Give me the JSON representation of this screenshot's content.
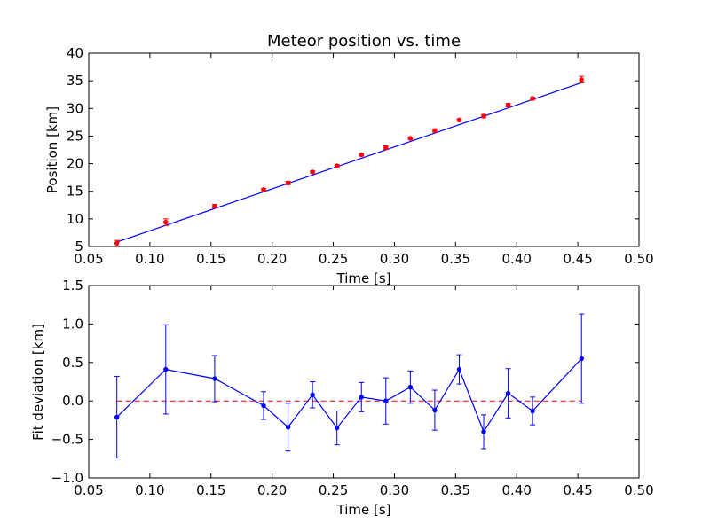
{
  "chart_data": [
    {
      "type": "scatter",
      "title": "Meteor position vs. time",
      "xlabel": "Time [s]",
      "ylabel": "Position [km]",
      "xlim": [
        0.05,
        0.5
      ],
      "ylim": [
        5,
        40
      ],
      "xticks": [
        "0.05",
        "0.10",
        "0.15",
        "0.20",
        "0.25",
        "0.30",
        "0.35",
        "0.40",
        "0.45",
        "0.50"
      ],
      "yticks": [
        "5",
        "10",
        "15",
        "20",
        "25",
        "30",
        "35",
        "40"
      ],
      "grid": false,
      "colors": {
        "points": "#ff0000",
        "fit": "#0000ff"
      },
      "series": [
        {
          "kind": "points-with-error-bars",
          "x": [
            0.073,
            0.113,
            0.153,
            0.193,
            0.213,
            0.233,
            0.253,
            0.273,
            0.293,
            0.313,
            0.333,
            0.353,
            0.373,
            0.393,
            0.413,
            0.453
          ],
          "y": [
            5.6,
            9.4,
            12.3,
            15.3,
            16.5,
            18.5,
            19.6,
            21.6,
            22.9,
            24.6,
            26.0,
            27.9,
            28.6,
            30.6,
            31.8,
            35.2
          ],
          "yerr": [
            0.5,
            0.6,
            0.3,
            0.2,
            0.3,
            0.2,
            0.2,
            0.2,
            0.3,
            0.2,
            0.3,
            0.2,
            0.3,
            0.3,
            0.2,
            0.6
          ]
        },
        {
          "kind": "line-fit",
          "x": [
            0.073,
            0.453
          ],
          "y": [
            5.8,
            34.65
          ]
        }
      ]
    },
    {
      "type": "line",
      "xlabel": "Time [s]",
      "ylabel": "Fit deviation [km]",
      "xlim": [
        0.05,
        0.5
      ],
      "ylim": [
        -1.0,
        1.5
      ],
      "xticks": [
        "0.05",
        "0.10",
        "0.15",
        "0.20",
        "0.25",
        "0.30",
        "0.35",
        "0.40",
        "0.45",
        "0.50"
      ],
      "yticks": [
        "−1.0",
        "−0.5",
        "0.0",
        "0.5",
        "1.0",
        "1.5"
      ],
      "grid": false,
      "colors": {
        "line": "#0000ff",
        "zero_line": "#ff0000"
      },
      "zero_line": {
        "y": 0,
        "style": "dashed"
      },
      "series": [
        {
          "kind": "line-with-error-bars",
          "x": [
            0.073,
            0.113,
            0.153,
            0.193,
            0.213,
            0.233,
            0.253,
            0.273,
            0.293,
            0.313,
            0.333,
            0.353,
            0.373,
            0.393,
            0.413,
            0.453
          ],
          "y": [
            -0.21,
            0.41,
            0.29,
            -0.06,
            -0.34,
            0.08,
            -0.35,
            0.05,
            0.0,
            0.18,
            -0.12,
            0.41,
            -0.4,
            0.1,
            -0.13,
            0.55
          ],
          "yerr": [
            0.53,
            0.58,
            0.3,
            0.18,
            0.31,
            0.17,
            0.22,
            0.19,
            0.3,
            0.21,
            0.26,
            0.19,
            0.22,
            0.32,
            0.18,
            0.58
          ]
        }
      ]
    }
  ]
}
